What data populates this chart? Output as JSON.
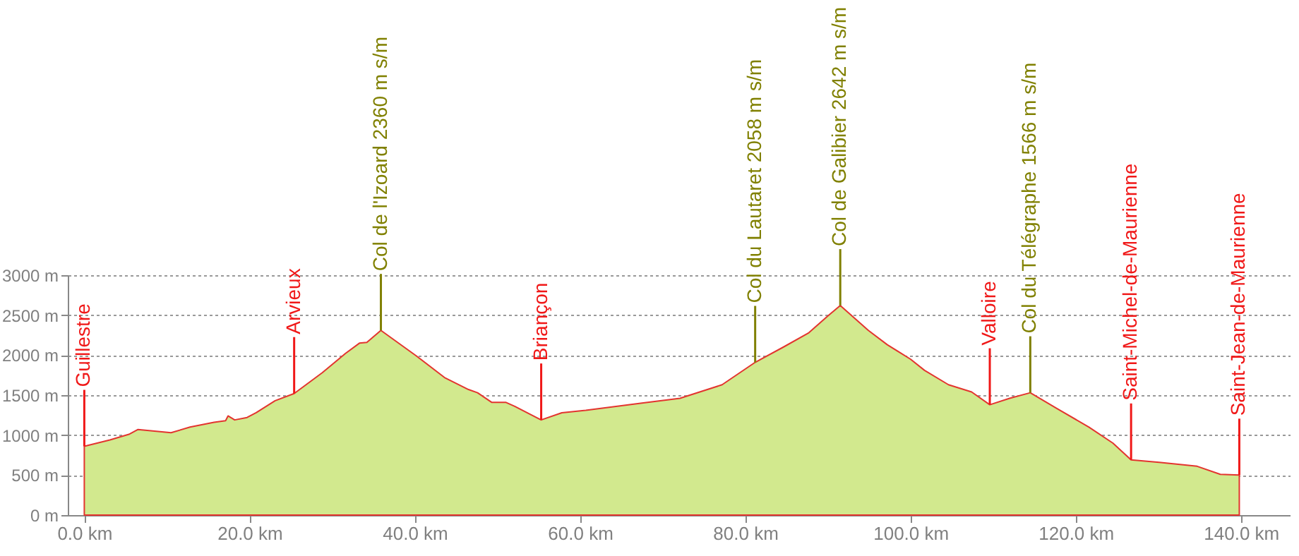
{
  "chart_data": {
    "type": "area",
    "xlim": [
      -2,
      146
    ],
    "xticks": [
      {
        "value": 0,
        "label": "0.0 km"
      },
      {
        "value": 20,
        "label": "20.0 km"
      },
      {
        "value": 40,
        "label": "40.0 km"
      },
      {
        "value": 60,
        "label": "60.0 km"
      },
      {
        "value": 80,
        "label": "80.0 km"
      },
      {
        "value": 100,
        "label": "100.0 km"
      },
      {
        "value": 120,
        "label": "120.0 km"
      },
      {
        "value": 140,
        "label": "140.0 km"
      }
    ],
    "ylim": [
      0,
      3000
    ],
    "yticks": [
      {
        "value": 0,
        "label": "0 m"
      },
      {
        "value": 500,
        "label": "500 m"
      },
      {
        "value": 1000,
        "label": "1000 m"
      },
      {
        "value": 1500,
        "label": "1500 m"
      },
      {
        "value": 2000,
        "label": "2000 m"
      },
      {
        "value": 2500,
        "label": "2500 m"
      },
      {
        "value": 3000,
        "label": "3000 m"
      }
    ],
    "grid": "y",
    "series": [
      {
        "color": "#d2e98e",
        "x": [
          0,
          3.1,
          5.4,
          6.5,
          10.5,
          12.8,
          15.7,
          17.1,
          17.4,
          18.2,
          19.7,
          20.8,
          23.1,
          25.4,
          28.8,
          31.6,
          33.3,
          34.2,
          35.9,
          40.2,
          43.6,
          46.5,
          47.6,
          49.3,
          51.0,
          52.1,
          55.3,
          57.8,
          60.7,
          67.5,
          72.1,
          77.2,
          81.2,
          84.6,
          87.7,
          90.0,
          91.5,
          94.9,
          97.2,
          100.0,
          101.7,
          104.6,
          107.4,
          109.6,
          112.0,
          114.5,
          117.6,
          121.6,
          124.5,
          126.7,
          130.1,
          134.7,
          137.5,
          139.8
        ],
        "values": [
          860,
          940,
          1010,
          1070,
          1030,
          1100,
          1160,
          1180,
          1240,
          1190,
          1220,
          1280,
          1430,
          1520,
          1780,
          2020,
          2150,
          2160,
          2310,
          1990,
          1720,
          1570,
          1530,
          1410,
          1410,
          1360,
          1190,
          1280,
          1310,
          1400,
          1460,
          1630,
          1910,
          2100,
          2280,
          2490,
          2620,
          2310,
          2130,
          1950,
          1810,
          1630,
          1540,
          1380,
          1460,
          1530,
          1340,
          1100,
          900,
          690,
          660,
          610,
          510,
          500
        ]
      }
    ],
    "ref_lines": [
      {
        "axis": "x",
        "value": 0,
        "label": "Guillestre",
        "color": "#f01818"
      },
      {
        "axis": "x",
        "value": 25.4,
        "label": "Arvieux",
        "color": "#f01818"
      },
      {
        "axis": "x",
        "value": 35.9,
        "label": "Col de l'Izoard 2360 m s/m",
        "color": "#808000"
      },
      {
        "axis": "x",
        "value": 55.3,
        "label": "Briançon",
        "color": "#f01818"
      },
      {
        "axis": "x",
        "value": 81.2,
        "label": "Col du Lautaret 2058 m s/m",
        "color": "#808000"
      },
      {
        "axis": "x",
        "value": 91.5,
        "label": "Col de Galibier 2642 m s/m",
        "color": "#808000"
      },
      {
        "axis": "x",
        "value": 109.6,
        "label": "Valloire",
        "color": "#f01818"
      },
      {
        "axis": "x",
        "value": 114.5,
        "label": "Col du Télégraphe 1566 m s/m",
        "color": "#808000"
      },
      {
        "axis": "x",
        "value": 126.7,
        "label": "Saint-Michel-de-Maurienne",
        "color": "#f01818"
      },
      {
        "axis": "x",
        "value": 139.8,
        "label": "Saint-Jean-de-Maurienne",
        "color": "#f01818"
      }
    ]
  }
}
